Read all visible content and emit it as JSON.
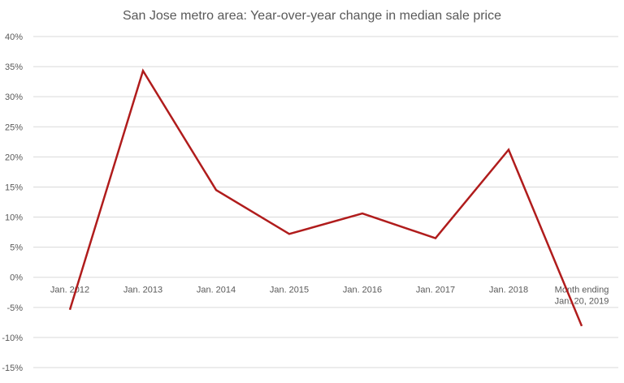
{
  "chart_data": {
    "type": "line",
    "title": "San Jose metro area: Year-over-year change in median sale price",
    "xlabel": "",
    "ylabel": "",
    "categories": [
      "Jan. 2012",
      "Jan. 2013",
      "Jan. 2014",
      "Jan. 2015",
      "Jan. 2016",
      "Jan. 2017",
      "Jan. 2018",
      "Month ending Jan. 20, 2019"
    ],
    "category_lines": [
      [
        "Jan. 2012"
      ],
      [
        "Jan. 2013"
      ],
      [
        "Jan. 2014"
      ],
      [
        "Jan. 2015"
      ],
      [
        "Jan. 2016"
      ],
      [
        "Jan. 2017"
      ],
      [
        "Jan. 2018"
      ],
      [
        "Month ending",
        "Jan. 20, 2019"
      ]
    ],
    "series": [
      {
        "name": "YoY change in median sale price",
        "values": [
          -5.4,
          34.3,
          14.5,
          7.2,
          10.6,
          6.5,
          21.2,
          -8.1
        ],
        "color": "#b01c1c"
      }
    ],
    "ylim": [
      -15,
      40
    ],
    "yticks": [
      40,
      35,
      30,
      25,
      20,
      15,
      10,
      5,
      0,
      -5,
      -10,
      -15
    ],
    "ytick_labels": [
      "40%",
      "35%",
      "30%",
      "25%",
      "20%",
      "15%",
      "10%",
      "5%",
      "0%",
      "-5%",
      "-10%",
      "-15%"
    ],
    "grid": true,
    "legend": "none",
    "colors": {
      "grid": "#d9d9d9",
      "text": "#595959"
    }
  }
}
